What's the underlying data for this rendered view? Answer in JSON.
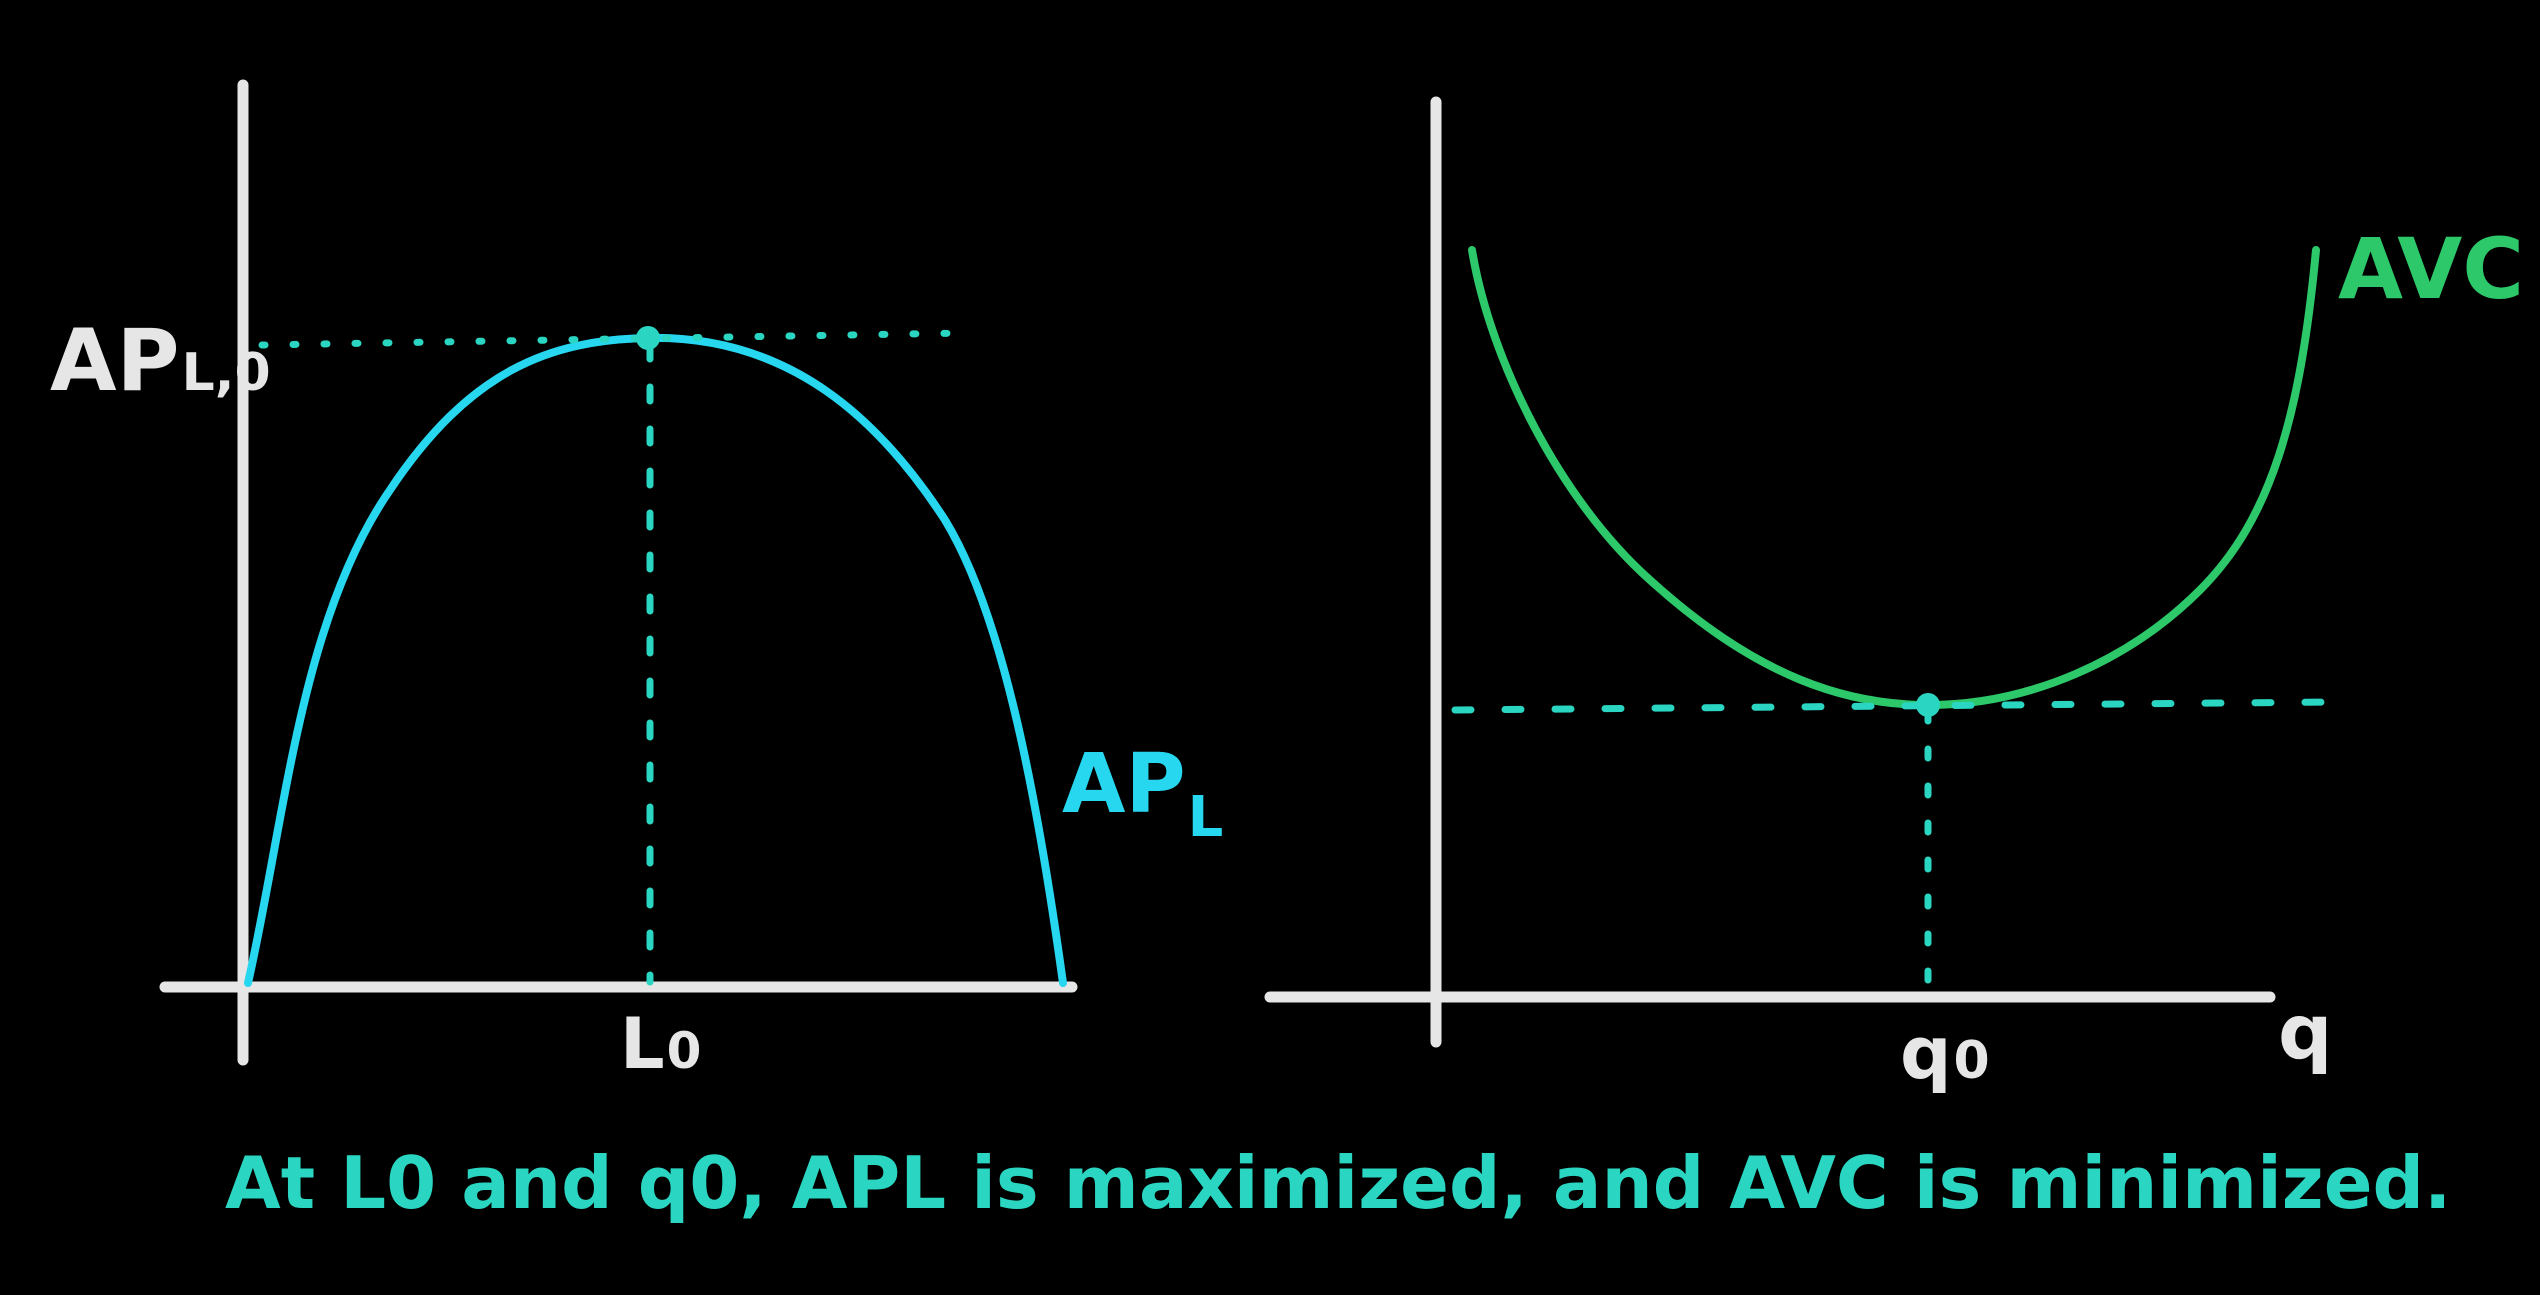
{
  "colors": {
    "background": "#000000",
    "axis": "#e6e6e6",
    "apl_curve": "#27d6ef",
    "avc_curve": "#2cc86a",
    "guide": "#2ad6c2",
    "caption": "#2ad6c2"
  },
  "left_graph": {
    "y_label_main": "AP",
    "y_label_sub": "L,0",
    "x_label_main": "L",
    "x_label_sub": "0",
    "curve_label_main": "AP",
    "curve_label_sub": "L"
  },
  "right_graph": {
    "curve_label": "AVC",
    "x_label_main": "q",
    "x_label_sub": "0",
    "x_axis_label": "q"
  },
  "caption": {
    "text": "At L0 and q0, APL is maximized, and AVC is minimized."
  }
}
